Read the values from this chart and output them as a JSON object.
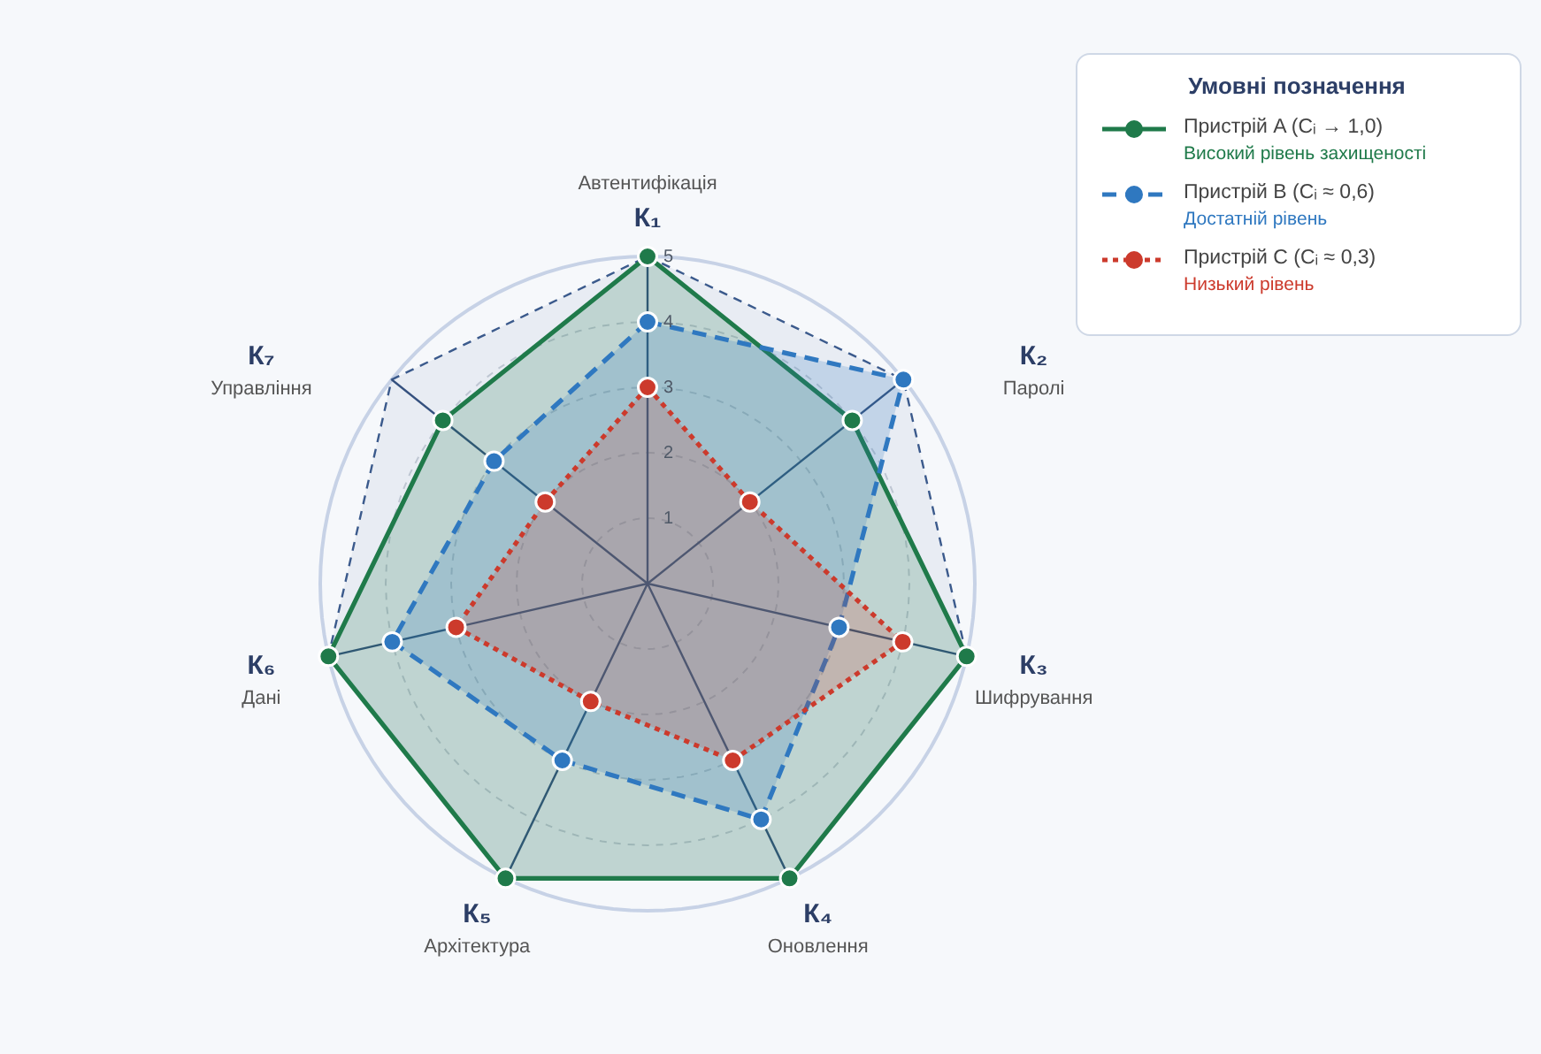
{
  "chart_data": {
    "type": "radar",
    "legend_title": "Умовні позначення",
    "categories": [
      "К₁",
      "К₂",
      "К₃",
      "К₄",
      "К₅",
      "К₆",
      "К₇"
    ],
    "annotations": [
      "Автентифікація",
      "Паролі",
      "Шифрування",
      "Оновлення",
      "Архітектура",
      "Дані",
      "Управління"
    ],
    "ylim": [
      0,
      5
    ],
    "yticks": [
      1,
      2,
      3,
      4,
      5
    ],
    "grid": true,
    "legend": "top right",
    "marker": "circle",
    "series": [
      {
        "name": "Пристрій A (Cᵢ → 1,0)\nВисокий рівень захищеності",
        "color": "#1f7a4a",
        "line_style": "solid",
        "values": [
          5,
          4,
          5,
          5,
          5,
          5,
          4
        ]
      },
      {
        "name": "Пристрій B (Cᵢ ≈ 0,6)\nДостатній рівень",
        "color": "#2f78c0",
        "line_style": "dashed",
        "values": [
          4,
          5,
          3,
          4,
          3,
          4,
          3
        ]
      },
      {
        "name": "Пристрій C (Cᵢ ≈ 0,3)\nНизький рівень",
        "color": "#cc3a2c",
        "line_style": "dotted",
        "values": [
          3,
          2,
          4,
          3,
          2,
          3,
          2
        ]
      }
    ]
  }
}
